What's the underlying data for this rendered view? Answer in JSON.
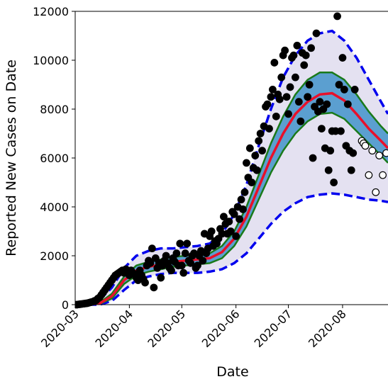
{
  "chart_data": {
    "type": "scatter",
    "ylabel": "Reported New Cases on Date",
    "xlabel": "Date",
    "xlim": [
      0,
      179
    ],
    "ylim": [
      0,
      12000
    ],
    "xticks": [
      {
        "value": 0,
        "label": "2020-03"
      },
      {
        "value": 31,
        "label": "2020-04"
      },
      {
        "value": 61,
        "label": "2020-05"
      },
      {
        "value": 92,
        "label": "2020-06"
      },
      {
        "value": 122,
        "label": "2020-07"
      },
      {
        "value": 153,
        "label": "2020-08"
      }
    ],
    "yticks": [
      0,
      2000,
      4000,
      6000,
      8000,
      10000,
      12000
    ],
    "series": [
      {
        "kind": "line",
        "color": "#0000ee",
        "dash": true,
        "width": 3.5,
        "fill_to": 1,
        "fill_color": "#e4e1f1",
        "x": [
          0,
          7,
          14,
          21,
          28,
          35,
          42,
          49,
          56,
          63,
          70,
          77,
          84,
          91,
          98,
          105,
          112,
          119,
          126,
          133,
          140,
          147,
          154,
          161,
          168,
          175,
          179
        ],
        "values": [
          0,
          0,
          200,
          700,
          1500,
          2000,
          2200,
          2300,
          2300,
          2350,
          2400,
          2500,
          2900,
          3700,
          4900,
          6500,
          8000,
          9300,
          10200,
          10800,
          11100,
          11200,
          10800,
          10100,
          9200,
          8300,
          7800
        ]
      },
      {
        "kind": "line",
        "color": "#0000ee",
        "dash": true,
        "width": 3.5,
        "x": [
          0,
          7,
          14,
          21,
          28,
          35,
          42,
          49,
          56,
          63,
          70,
          77,
          84,
          91,
          98,
          105,
          112,
          119,
          126,
          133,
          140,
          147,
          154,
          161,
          168,
          175,
          179
        ],
        "values": [
          0,
          0,
          0,
          150,
          600,
          1000,
          1150,
          1250,
          1300,
          1300,
          1300,
          1350,
          1450,
          1700,
          2100,
          2700,
          3300,
          3800,
          4150,
          4400,
          4500,
          4550,
          4500,
          4400,
          4300,
          4250,
          4200
        ]
      },
      {
        "kind": "line",
        "color": "#1a7a1a",
        "dash": false,
        "width": 2.5,
        "fill_to": 3,
        "fill_color": "#5b9fd0",
        "x": [
          0,
          7,
          14,
          21,
          28,
          35,
          42,
          49,
          56,
          63,
          70,
          77,
          84,
          91,
          98,
          105,
          112,
          119,
          126,
          133,
          140,
          147,
          154,
          161,
          168,
          175,
          179
        ],
        "values": [
          0,
          0,
          80,
          450,
          1150,
          1600,
          1750,
          1850,
          1950,
          2000,
          2050,
          2100,
          2400,
          3000,
          4000,
          5300,
          6600,
          7700,
          8600,
          9200,
          9500,
          9500,
          9200,
          8600,
          7900,
          7300,
          7000
        ]
      },
      {
        "kind": "line",
        "color": "#1a7a1a",
        "dash": false,
        "width": 2.5,
        "x": [
          0,
          7,
          14,
          21,
          28,
          35,
          42,
          49,
          56,
          63,
          70,
          77,
          84,
          91,
          98,
          105,
          112,
          119,
          126,
          133,
          140,
          147,
          154,
          161,
          168,
          175,
          179
        ],
        "values": [
          0,
          0,
          30,
          250,
          850,
          1200,
          1350,
          1450,
          1550,
          1600,
          1650,
          1700,
          1900,
          2400,
          3200,
          4300,
          5400,
          6300,
          7000,
          7500,
          7800,
          7850,
          7600,
          7100,
          6600,
          6100,
          5800
        ]
      },
      {
        "kind": "line",
        "color": "#e8102a",
        "dash": false,
        "width": 3.5,
        "x": [
          0,
          7,
          14,
          21,
          28,
          35,
          42,
          49,
          56,
          63,
          70,
          77,
          84,
          91,
          98,
          105,
          112,
          119,
          126,
          133,
          140,
          147,
          154,
          161,
          168,
          175,
          179
        ],
        "values": [
          0,
          0,
          50,
          350,
          1000,
          1400,
          1550,
          1650,
          1750,
          1800,
          1850,
          1900,
          2150,
          2700,
          3600,
          4800,
          6000,
          7000,
          7800,
          8300,
          8600,
          8650,
          8350,
          7800,
          7200,
          6700,
          6400
        ]
      },
      {
        "kind": "points",
        "color": "#000000",
        "fill": "#000000",
        "x": [
          0,
          1,
          2,
          3,
          4,
          5,
          6,
          7,
          8,
          9,
          10,
          11,
          12,
          13,
          14,
          15,
          16,
          17,
          18,
          19,
          20,
          21,
          22,
          23,
          24,
          25,
          26,
          27,
          28,
          29,
          30,
          31,
          32,
          33,
          34,
          35,
          36,
          37,
          38,
          39,
          40,
          41,
          42,
          43,
          44,
          45,
          46,
          47,
          48,
          49,
          50,
          51,
          52,
          53,
          54,
          55,
          56,
          57,
          58,
          59,
          60,
          61,
          62,
          63,
          64,
          65,
          66,
          67,
          68,
          69,
          70,
          71,
          72,
          73,
          74,
          75,
          76,
          77,
          78,
          79,
          80,
          81,
          82,
          83,
          84,
          85,
          86,
          87,
          88,
          89,
          90,
          91,
          92,
          93,
          94,
          95,
          96,
          97,
          98,
          99,
          100,
          101,
          102,
          103,
          104,
          105,
          106,
          107,
          108,
          109,
          110,
          111,
          112,
          113,
          114,
          115,
          116,
          117,
          118,
          119,
          120,
          121,
          122,
          123,
          124,
          125,
          126,
          127,
          128,
          129,
          130,
          131,
          132,
          133,
          134,
          135,
          136,
          137,
          138,
          139,
          140,
          141,
          142,
          143,
          144,
          145,
          146,
          147,
          148,
          149,
          150,
          151,
          152,
          153,
          154,
          155,
          156,
          157,
          158,
          159,
          160
        ],
        "values": [
          0,
          0,
          10,
          20,
          30,
          40,
          50,
          60,
          80,
          100,
          120,
          150,
          180,
          250,
          300,
          400,
          500,
          600,
          700,
          800,
          900,
          1000,
          1100,
          1200,
          1250,
          1300,
          1350,
          1400,
          1300,
          1450,
          1350,
          1200,
          1400,
          1300,
          1250,
          1100,
          1000,
          1400,
          1200,
          1050,
          900,
          1600,
          1800,
          1700,
          2300,
          700,
          1900,
          1500,
          1700,
          1100,
          1600,
          1800,
          2000,
          1700,
          1500,
          1400,
          1900,
          1750,
          2100,
          1600,
          2500,
          1600,
          1300,
          2100,
          2500,
          1800,
          1700,
          2000,
          2100,
          1500,
          1600,
          2000,
          2200,
          1800,
          2900,
          2100,
          2300,
          2800,
          3000,
          2400,
          2600,
          2500,
          2700,
          3100,
          2900,
          3600,
          3300,
          2900,
          3400,
          3000,
          3800,
          3700,
          2800,
          4000,
          3500,
          4300,
          3900,
          4600,
          5800,
          5200,
          6400,
          5000,
          5600,
          6100,
          5500,
          6700,
          7000,
          6300,
          7300,
          8100,
          8200,
          7200,
          8500,
          8800,
          9900,
          7700,
          8600,
          8400,
          9300,
          10200,
          10400,
          8500,
          7800,
          8900,
          10100,
          10200,
          9300,
          10600,
          8300,
          7500,
          10300,
          9800,
          10200,
          8500,
          9000,
          10500,
          6000,
          8100,
          11100,
          7900,
          8300,
          7200,
          8000,
          6400,
          8200,
          5500,
          6300,
          7100,
          5000,
          7100,
          11800,
          9000,
          7100,
          10100,
          8800,
          6500,
          8200,
          6300,
          5500,
          6200,
          8800
        ]
      },
      {
        "kind": "points",
        "color": "#000000",
        "fill": "#ffffff",
        "x": [
          164,
          165,
          166,
          168,
          170,
          172,
          174,
          176,
          178
        ],
        "values": [
          6700,
          6600,
          6500,
          5300,
          6300,
          4600,
          6100,
          5300,
          6200
        ]
      }
    ]
  }
}
